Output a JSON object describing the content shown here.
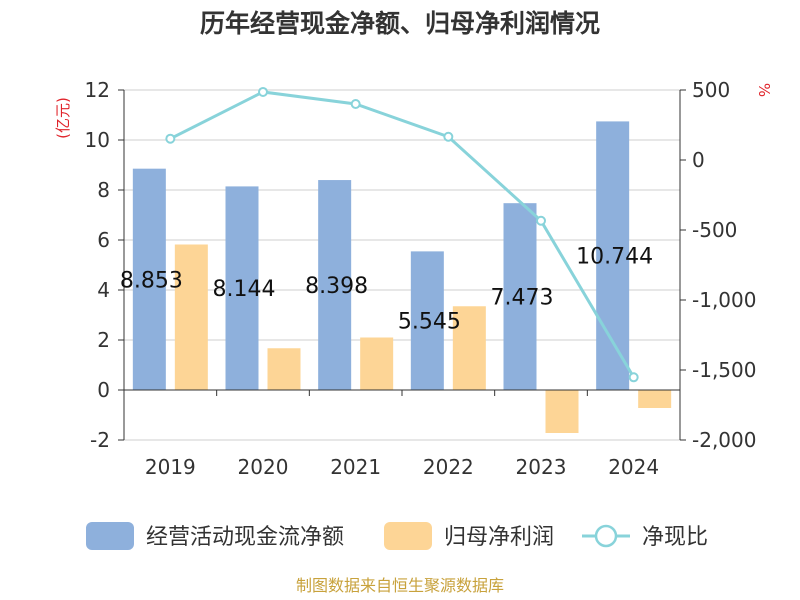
{
  "chart_data": {
    "type": "bar",
    "title": "历年经营现金净额、归母净利润情况",
    "categories": [
      "2019",
      "2020",
      "2021",
      "2022",
      "2023",
      "2024"
    ],
    "series": [
      {
        "name": "经营活动现金流净额",
        "axis": "left",
        "type": "bar",
        "color": "#8eb0dc",
        "values": [
          8.853,
          8.144,
          8.398,
          5.545,
          7.473,
          10.744
        ]
      },
      {
        "name": "归母净利润",
        "axis": "left",
        "type": "bar",
        "color": "#fdd596",
        "values": [
          5.82,
          1.67,
          2.1,
          3.35,
          -1.72,
          -0.72
        ]
      },
      {
        "name": "净现比",
        "axis": "right",
        "type": "line",
        "color": "#88d3da",
        "values": [
          152,
          486,
          400,
          166,
          -434,
          -1552
        ]
      }
    ],
    "data_labels": [
      "8.853",
      "8.144",
      "8.398",
      "5.545",
      "7.473",
      "10.744"
    ],
    "y_left": {
      "unit": "(亿元)",
      "ylim": [
        -2,
        12
      ],
      "ticks": [
        "-2",
        "0",
        "2",
        "4",
        "6",
        "8",
        "10",
        "12"
      ],
      "tick_values": [
        -2,
        0,
        2,
        4,
        6,
        8,
        10,
        12
      ]
    },
    "y_right": {
      "unit": "%",
      "ylim": [
        -2000,
        500
      ],
      "ticks": [
        "-2,000",
        "-1,500",
        "-1,000",
        "-500",
        "0",
        "500"
      ],
      "tick_values": [
        -2000,
        -1500,
        -1000,
        -500,
        0,
        500
      ]
    },
    "grid": true,
    "legend_position": "bottom"
  },
  "source_text": "制图数据来自恒生聚源数据库"
}
